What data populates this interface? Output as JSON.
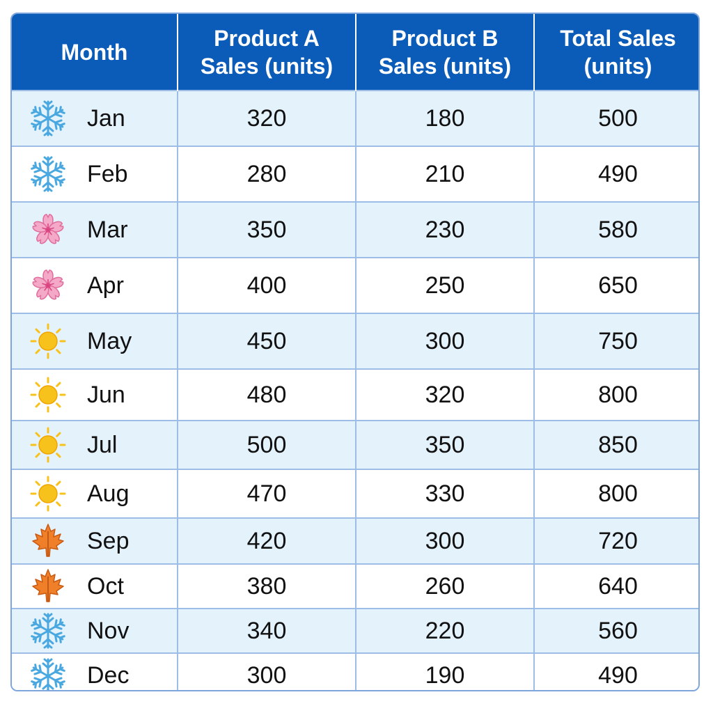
{
  "chart_data": {
    "type": "table",
    "columns": [
      "Month",
      "Product A Sales (units)",
      "Product B Sales (units)",
      "Total Sales (units)"
    ],
    "header_lines": [
      [
        "Month"
      ],
      [
        "Product A",
        "Sales (units)"
      ],
      [
        "Product B",
        "Sales (units)"
      ],
      [
        "Total Sales",
        "(units)"
      ]
    ],
    "rows": [
      {
        "month": "Jan",
        "season_icon": "snowflake-icon",
        "a": "320",
        "b": "180",
        "total": "500"
      },
      {
        "month": "Feb",
        "season_icon": "snowflake-icon",
        "a": "280",
        "b": "210",
        "total": "490"
      },
      {
        "month": "Mar",
        "season_icon": "cherry-blossom-icon",
        "a": "350",
        "b": "230",
        "total": "580"
      },
      {
        "month": "Apr",
        "season_icon": "cherry-blossom-icon",
        "a": "400",
        "b": "250",
        "total": "650"
      },
      {
        "month": "May",
        "season_icon": "sun-icon",
        "a": "450",
        "b": "300",
        "total": "750"
      },
      {
        "month": "Jun",
        "season_icon": "sun-icon",
        "a": "480",
        "b": "320",
        "total": "800"
      },
      {
        "month": "Jul",
        "season_icon": "sun-icon",
        "a": "500",
        "b": "350",
        "total": "850"
      },
      {
        "month": "Aug",
        "season_icon": "sun-icon",
        "a": "470",
        "b": "330",
        "total": "800"
      },
      {
        "month": "Sep",
        "season_icon": "maple-leaf-icon",
        "a": "420",
        "b": "300",
        "total": "720"
      },
      {
        "month": "Oct",
        "season_icon": "maple-leaf-icon",
        "a": "380",
        "b": "260",
        "total": "640"
      },
      {
        "month": "Nov",
        "season_icon": "snowflake-icon",
        "a": "340",
        "b": "220",
        "total": "560"
      },
      {
        "month": "Dec",
        "season_icon": "snowflake-icon",
        "a": "300",
        "b": "190",
        "total": "490"
      }
    ]
  },
  "colors": {
    "header_bg": "#0b5bb8",
    "header_text": "#ffffff",
    "row_alt_bg": "#e4f2fc",
    "grid": "#9dbde6",
    "snowflake": "#4aa8e0",
    "blossom": "#f4a9c8",
    "sun": "#f7c21b",
    "maple": "#f07f2a"
  }
}
